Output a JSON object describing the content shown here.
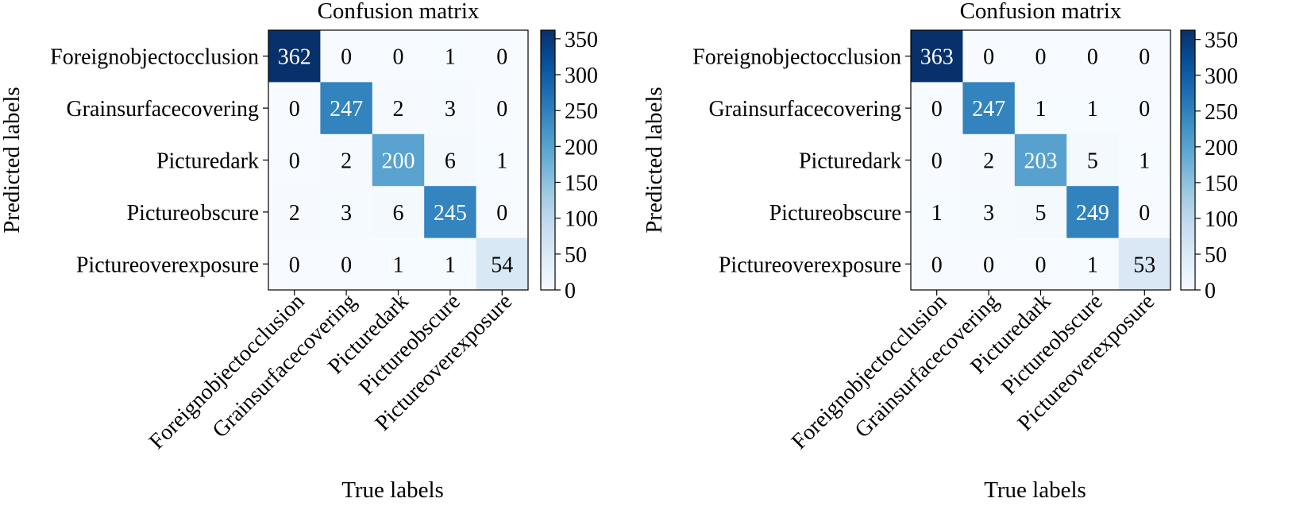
{
  "chart_data": [
    {
      "type": "heatmap",
      "title": "Confusion matrix",
      "xlabel": "True labels",
      "ylabel": "Predicted labels",
      "x_categories": [
        "Foreignobjectocclusion",
        "Grainsurfacecovering",
        "Picturedark",
        "Pictureobscure",
        "Pictureoverexposure"
      ],
      "y_categories": [
        "Foreignobjectocclusion",
        "Grainsurfacecovering",
        "Picturedark",
        "Pictureobscure",
        "Pictureoverexposure"
      ],
      "values": [
        [
          362,
          0,
          0,
          1,
          0
        ],
        [
          0,
          247,
          2,
          3,
          0
        ],
        [
          0,
          2,
          200,
          6,
          1
        ],
        [
          2,
          3,
          6,
          245,
          0
        ],
        [
          0,
          0,
          1,
          1,
          54
        ]
      ],
      "colorscale": "Blues",
      "vmin": 0,
      "vmax": 362,
      "colorbar_ticks": [
        0,
        50,
        100,
        150,
        200,
        250,
        300,
        350
      ]
    },
    {
      "type": "heatmap",
      "title": "Confusion matrix",
      "xlabel": "True labels",
      "ylabel": "Predicted labels",
      "x_categories": [
        "Foreignobjectocclusion",
        "Grainsurfacecovering",
        "Picturedark",
        "Pictureobscure",
        "Pictureoverexposure"
      ],
      "y_categories": [
        "Foreignobjectocclusion",
        "Grainsurfacecovering",
        "Picturedark",
        "Pictureobscure",
        "Pictureoverexposure"
      ],
      "values": [
        [
          363,
          0,
          0,
          0,
          0
        ],
        [
          0,
          247,
          1,
          1,
          0
        ],
        [
          0,
          2,
          203,
          5,
          1
        ],
        [
          1,
          3,
          5,
          249,
          0
        ],
        [
          0,
          0,
          0,
          1,
          53
        ]
      ],
      "colorscale": "Blues",
      "vmin": 0,
      "vmax": 363,
      "colorbar_ticks": [
        0,
        50,
        100,
        150,
        200,
        250,
        300,
        350
      ]
    }
  ]
}
